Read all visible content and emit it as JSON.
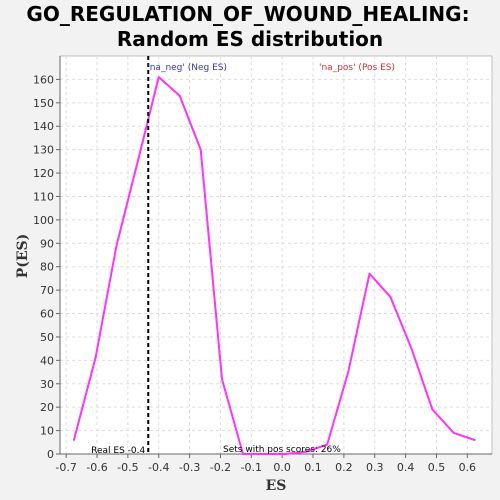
{
  "chart_data": {
    "type": "line",
    "title": "GO_REGULATION_OF_WOUND_HEALING:",
    "subtitle": "Random ES distribution",
    "xlabel": "ES",
    "ylabel": "P(ES)",
    "xlim": [
      -0.72,
      0.68
    ],
    "ylim": [
      0,
      170
    ],
    "xticks": [
      -0.7,
      -0.6,
      -0.5,
      -0.4,
      -0.3,
      -0.2,
      -0.1,
      0.0,
      0.1,
      0.2,
      0.3,
      0.4,
      0.5,
      0.6
    ],
    "xtick_labels": [
      "-0.7",
      "-0.6",
      "-0.5",
      "-0.4",
      "-0.3",
      "-0.2",
      "-0.1",
      "0.0",
      "0.1",
      "0.2",
      "0.3",
      "0.4",
      "0.5",
      "0.6"
    ],
    "yticks": [
      0,
      10,
      20,
      30,
      40,
      50,
      60,
      70,
      80,
      90,
      100,
      110,
      120,
      130,
      140,
      150,
      160
    ],
    "ytick_labels": [
      "0",
      "10",
      "20",
      "30",
      "40",
      "50",
      "60",
      "70",
      "80",
      "90",
      "100",
      "110",
      "120",
      "130",
      "140",
      "150",
      "160"
    ],
    "grid": true,
    "series": [
      {
        "color": "#ff33ff",
        "x": [
          -0.675,
          -0.605,
          -0.537,
          -0.468,
          -0.4,
          -0.332,
          -0.264,
          -0.195,
          -0.127,
          -0.059,
          0.01,
          0.078,
          0.146,
          0.214,
          0.283,
          0.351,
          0.419,
          0.487,
          0.556,
          0.624
        ],
        "y": [
          6,
          41,
          89,
          125,
          161,
          153,
          130,
          32,
          0,
          0,
          0,
          1,
          4,
          35,
          77,
          67,
          45,
          19,
          9,
          6
        ]
      }
    ],
    "annotations": {
      "real_es": {
        "x": -0.434,
        "label": "Real ES -0.4",
        "color": "#000000"
      },
      "na_neg": {
        "label": "'na_neg' (Neg ES)",
        "color": "#3333cc"
      },
      "na_pos": {
        "label": "'na_pos' (Pos ES)",
        "color": "#cc3333"
      },
      "sets_pos": {
        "label": "Sets with pos scores: 26%",
        "color": "#000000"
      }
    }
  }
}
